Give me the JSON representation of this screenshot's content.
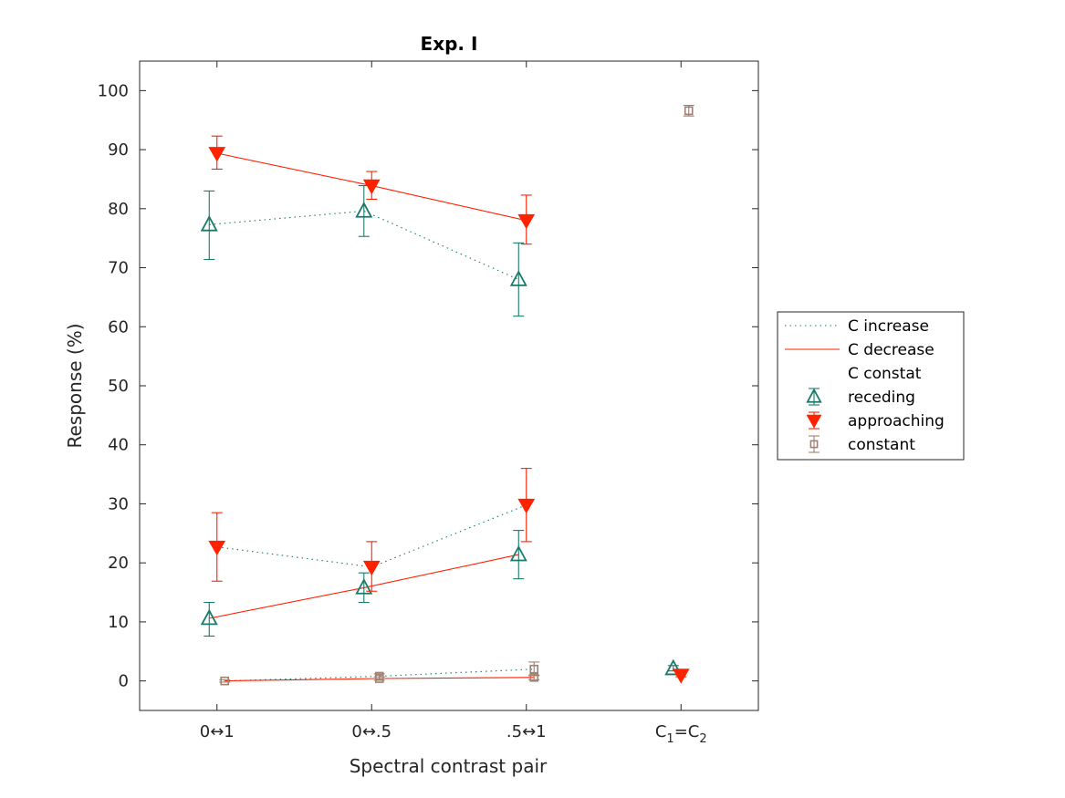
{
  "chart_data": {
    "type": "line",
    "title": "Exp. I",
    "xlabel": "Spectral contrast pair",
    "ylabel": "Response (%)",
    "ylim": [
      -5,
      105
    ],
    "yticks": [
      0,
      10,
      20,
      30,
      40,
      50,
      60,
      70,
      80,
      90,
      100
    ],
    "categories": [
      {
        "main": "0↔1"
      },
      {
        "main": "0↔.5"
      },
      {
        "main": ".5↔1"
      },
      {
        "c1": "C",
        "s1": "1",
        "eq": "=",
        "c2": "C",
        "s2": "2"
      }
    ],
    "colors": {
      "receding": "#1a7a6a",
      "approaching": "#ff2200",
      "constant": "#a08070",
      "increase_line": "#1a7a6a",
      "decrease_line": "#ff2200",
      "axis": "#262626"
    },
    "lines": [
      {
        "name": "C increase",
        "style": "dotted",
        "color_key": "increase_line",
        "groups": [
          [
            {
              "x": 0.95,
              "y": 77.3
            },
            {
              "x": 1.95,
              "y": 79.6
            },
            {
              "x": 2.95,
              "y": 68.0
            }
          ],
          [
            {
              "x": 1.0,
              "y": 22.7
            },
            {
              "x": 2.0,
              "y": 19.3
            },
            {
              "x": 3.0,
              "y": 29.8
            }
          ],
          [
            {
              "x": 1.05,
              "y": 0.0
            },
            {
              "x": 2.05,
              "y": 0.8
            },
            {
              "x": 3.05,
              "y": 2.0
            }
          ]
        ]
      },
      {
        "name": "C decrease",
        "style": "solid",
        "color_key": "decrease_line",
        "groups": [
          [
            {
              "x": 1.0,
              "y": 89.4
            },
            {
              "x": 2.0,
              "y": 83.9
            },
            {
              "x": 3.0,
              "y": 78.0
            }
          ],
          [
            {
              "x": 0.95,
              "y": 10.6
            },
            {
              "x": 1.95,
              "y": 15.8
            },
            {
              "x": 2.95,
              "y": 21.4
            }
          ],
          [
            {
              "x": 1.05,
              "y": 0.0
            },
            {
              "x": 2.05,
              "y": 0.4
            },
            {
              "x": 3.05,
              "y": 0.6
            }
          ]
        ]
      }
    ],
    "series": [
      {
        "name": "receding",
        "marker": "triangle-up-open",
        "color_key": "receding",
        "points": [
          {
            "x": 0.95,
            "y": 77.3,
            "lo": 71.4,
            "hi": 83.0
          },
          {
            "x": 1.95,
            "y": 79.6,
            "lo": 75.3,
            "hi": 83.9
          },
          {
            "x": 2.95,
            "y": 68.0,
            "lo": 61.8,
            "hi": 74.2
          },
          {
            "x": 0.95,
            "y": 10.6,
            "lo": 7.6,
            "hi": 13.3
          },
          {
            "x": 1.95,
            "y": 15.8,
            "lo": 13.3,
            "hi": 18.3
          },
          {
            "x": 2.95,
            "y": 21.4,
            "lo": 17.3,
            "hi": 25.5
          },
          {
            "x": 3.95,
            "y": 2.1,
            "lo": 1.7,
            "hi": 2.6
          }
        ]
      },
      {
        "name": "approaching",
        "marker": "triangle-down-filled",
        "color_key": "approaching",
        "points": [
          {
            "x": 1.0,
            "y": 89.4,
            "lo": 86.7,
            "hi": 92.3
          },
          {
            "x": 2.0,
            "y": 83.9,
            "lo": 81.6,
            "hi": 86.3
          },
          {
            "x": 3.0,
            "y": 78.0,
            "lo": 74.0,
            "hi": 82.3
          },
          {
            "x": 1.0,
            "y": 22.7,
            "lo": 16.9,
            "hi": 28.5
          },
          {
            "x": 2.0,
            "y": 19.3,
            "lo": 15.2,
            "hi": 23.6
          },
          {
            "x": 3.0,
            "y": 29.8,
            "lo": 23.6,
            "hi": 36.0
          },
          {
            "x": 4.0,
            "y": 1.0,
            "lo": 0.7,
            "hi": 1.3
          }
        ]
      },
      {
        "name": "constant",
        "marker": "square-open",
        "color_key": "constant",
        "points": [
          {
            "x": 1.05,
            "y": 0.0,
            "lo": -0.2,
            "hi": 0.2
          },
          {
            "x": 2.05,
            "y": 0.8,
            "lo": 0.4,
            "hi": 1.2
          },
          {
            "x": 2.05,
            "y": 0.4,
            "lo": 0.1,
            "hi": 0.7
          },
          {
            "x": 3.05,
            "y": 2.0,
            "lo": 0.9,
            "hi": 3.2
          },
          {
            "x": 3.05,
            "y": 0.6,
            "lo": 0.2,
            "hi": 1.0
          },
          {
            "x": 4.05,
            "y": 96.6,
            "lo": 95.7,
            "hi": 97.5
          }
        ]
      }
    ],
    "legend": {
      "position": "right",
      "entries": [
        "C increase",
        "C decrease",
        "C constat",
        "receding",
        "approaching",
        "constant"
      ]
    }
  }
}
